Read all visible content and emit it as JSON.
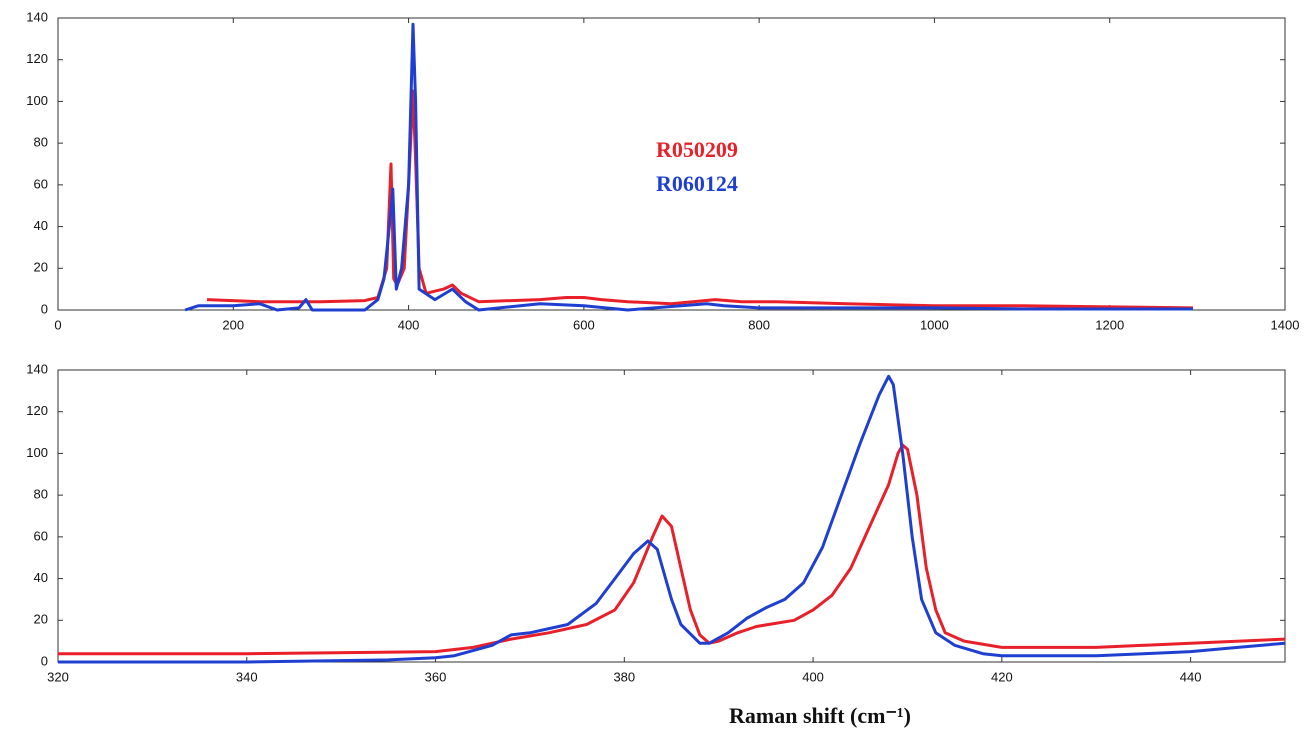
{
  "chart_data": [
    {
      "type": "line",
      "xlim": [
        0,
        1400
      ],
      "xticks": [
        0,
        200,
        400,
        600,
        800,
        1000,
        1200,
        1400
      ],
      "ylim": [
        0,
        140
      ],
      "yticks": [
        0,
        20,
        40,
        60,
        80,
        100,
        120,
        140
      ],
      "series": [
        {
          "name": "R050209",
          "color": "#e8202a",
          "x": [
            170,
            230,
            300,
            350,
            365,
            375,
            380,
            383,
            387,
            395,
            400,
            405,
            408,
            412,
            420,
            440,
            450,
            460,
            480,
            550,
            580,
            600,
            620,
            650,
            700,
            750,
            780,
            820,
            900,
            1000,
            1100,
            1200,
            1295
          ],
          "values": [
            5,
            4,
            4,
            4.5,
            6,
            20,
            70,
            15,
            12,
            20,
            60,
            105,
            72,
            20,
            8,
            10,
            12,
            8,
            4,
            5,
            6,
            6,
            5,
            4,
            3,
            5,
            4,
            4,
            3,
            2,
            2,
            1.5,
            1
          ]
        },
        {
          "name": "R060124",
          "color": "#1f3fd0",
          "x": [
            145,
            160,
            200,
            230,
            250,
            275,
            283,
            290,
            350,
            365,
            372,
            378,
            382,
            386,
            392,
            400,
            405,
            408,
            412,
            430,
            450,
            465,
            480,
            550,
            600,
            650,
            740,
            760,
            800,
            900,
            1000,
            1100,
            1295
          ],
          "values": [
            0,
            2,
            2,
            3,
            0,
            1,
            5,
            0,
            0,
            5,
            15,
            40,
            58,
            10,
            20,
            60,
            137,
            100,
            10,
            5,
            10,
            4,
            0,
            3,
            2,
            0,
            3,
            2,
            1,
            1,
            1,
            0.5,
            0.5
          ]
        }
      ]
    },
    {
      "type": "line",
      "x_label": "Raman shift (cm⁻¹)",
      "xlim": [
        320,
        450
      ],
      "xticks": [
        320,
        340,
        360,
        380,
        400,
        420,
        440
      ],
      "ylim": [
        0,
        140
      ],
      "yticks": [
        0,
        20,
        40,
        60,
        80,
        100,
        120,
        140
      ],
      "series": [
        {
          "color": "#e8202a",
          "x": [
            320,
            340,
            360,
            364,
            368,
            372,
            376,
            379,
            381,
            383,
            384,
            385,
            386,
            387,
            388,
            389,
            390,
            392,
            394,
            398,
            400,
            402,
            404,
            406,
            408,
            409,
            409.5,
            410,
            411,
            412,
            413,
            414,
            416,
            420,
            430,
            440,
            450
          ],
          "values": [
            4,
            4,
            5,
            7,
            11,
            14,
            18,
            25,
            38,
            60,
            70,
            65,
            45,
            25,
            13,
            9,
            10,
            14,
            17,
            20,
            25,
            32,
            45,
            65,
            85,
            100,
            104,
            102,
            80,
            45,
            25,
            14,
            10,
            7,
            7,
            9,
            11
          ]
        },
        {
          "color": "#1f3fd0",
          "x": [
            320,
            340,
            355,
            360,
            362,
            366,
            368,
            370,
            374,
            377,
            379,
            381,
            382.5,
            383.5,
            385,
            386,
            388,
            389,
            391,
            393,
            395,
            397,
            399,
            401,
            403,
            405,
            407,
            408,
            408.5,
            409.5,
            410.5,
            411.5,
            413,
            415,
            418,
            420,
            430,
            435,
            440,
            445,
            450
          ],
          "values": [
            0,
            0,
            1,
            2,
            3,
            8,
            13,
            14,
            18,
            28,
            40,
            52,
            58,
            54,
            30,
            18,
            9,
            9,
            14,
            21,
            26,
            30,
            38,
            55,
            80,
            105,
            128,
            137,
            133,
            100,
            60,
            30,
            14,
            8,
            4,
            3,
            3,
            4,
            5,
            7,
            9
          ]
        }
      ]
    }
  ]
}
